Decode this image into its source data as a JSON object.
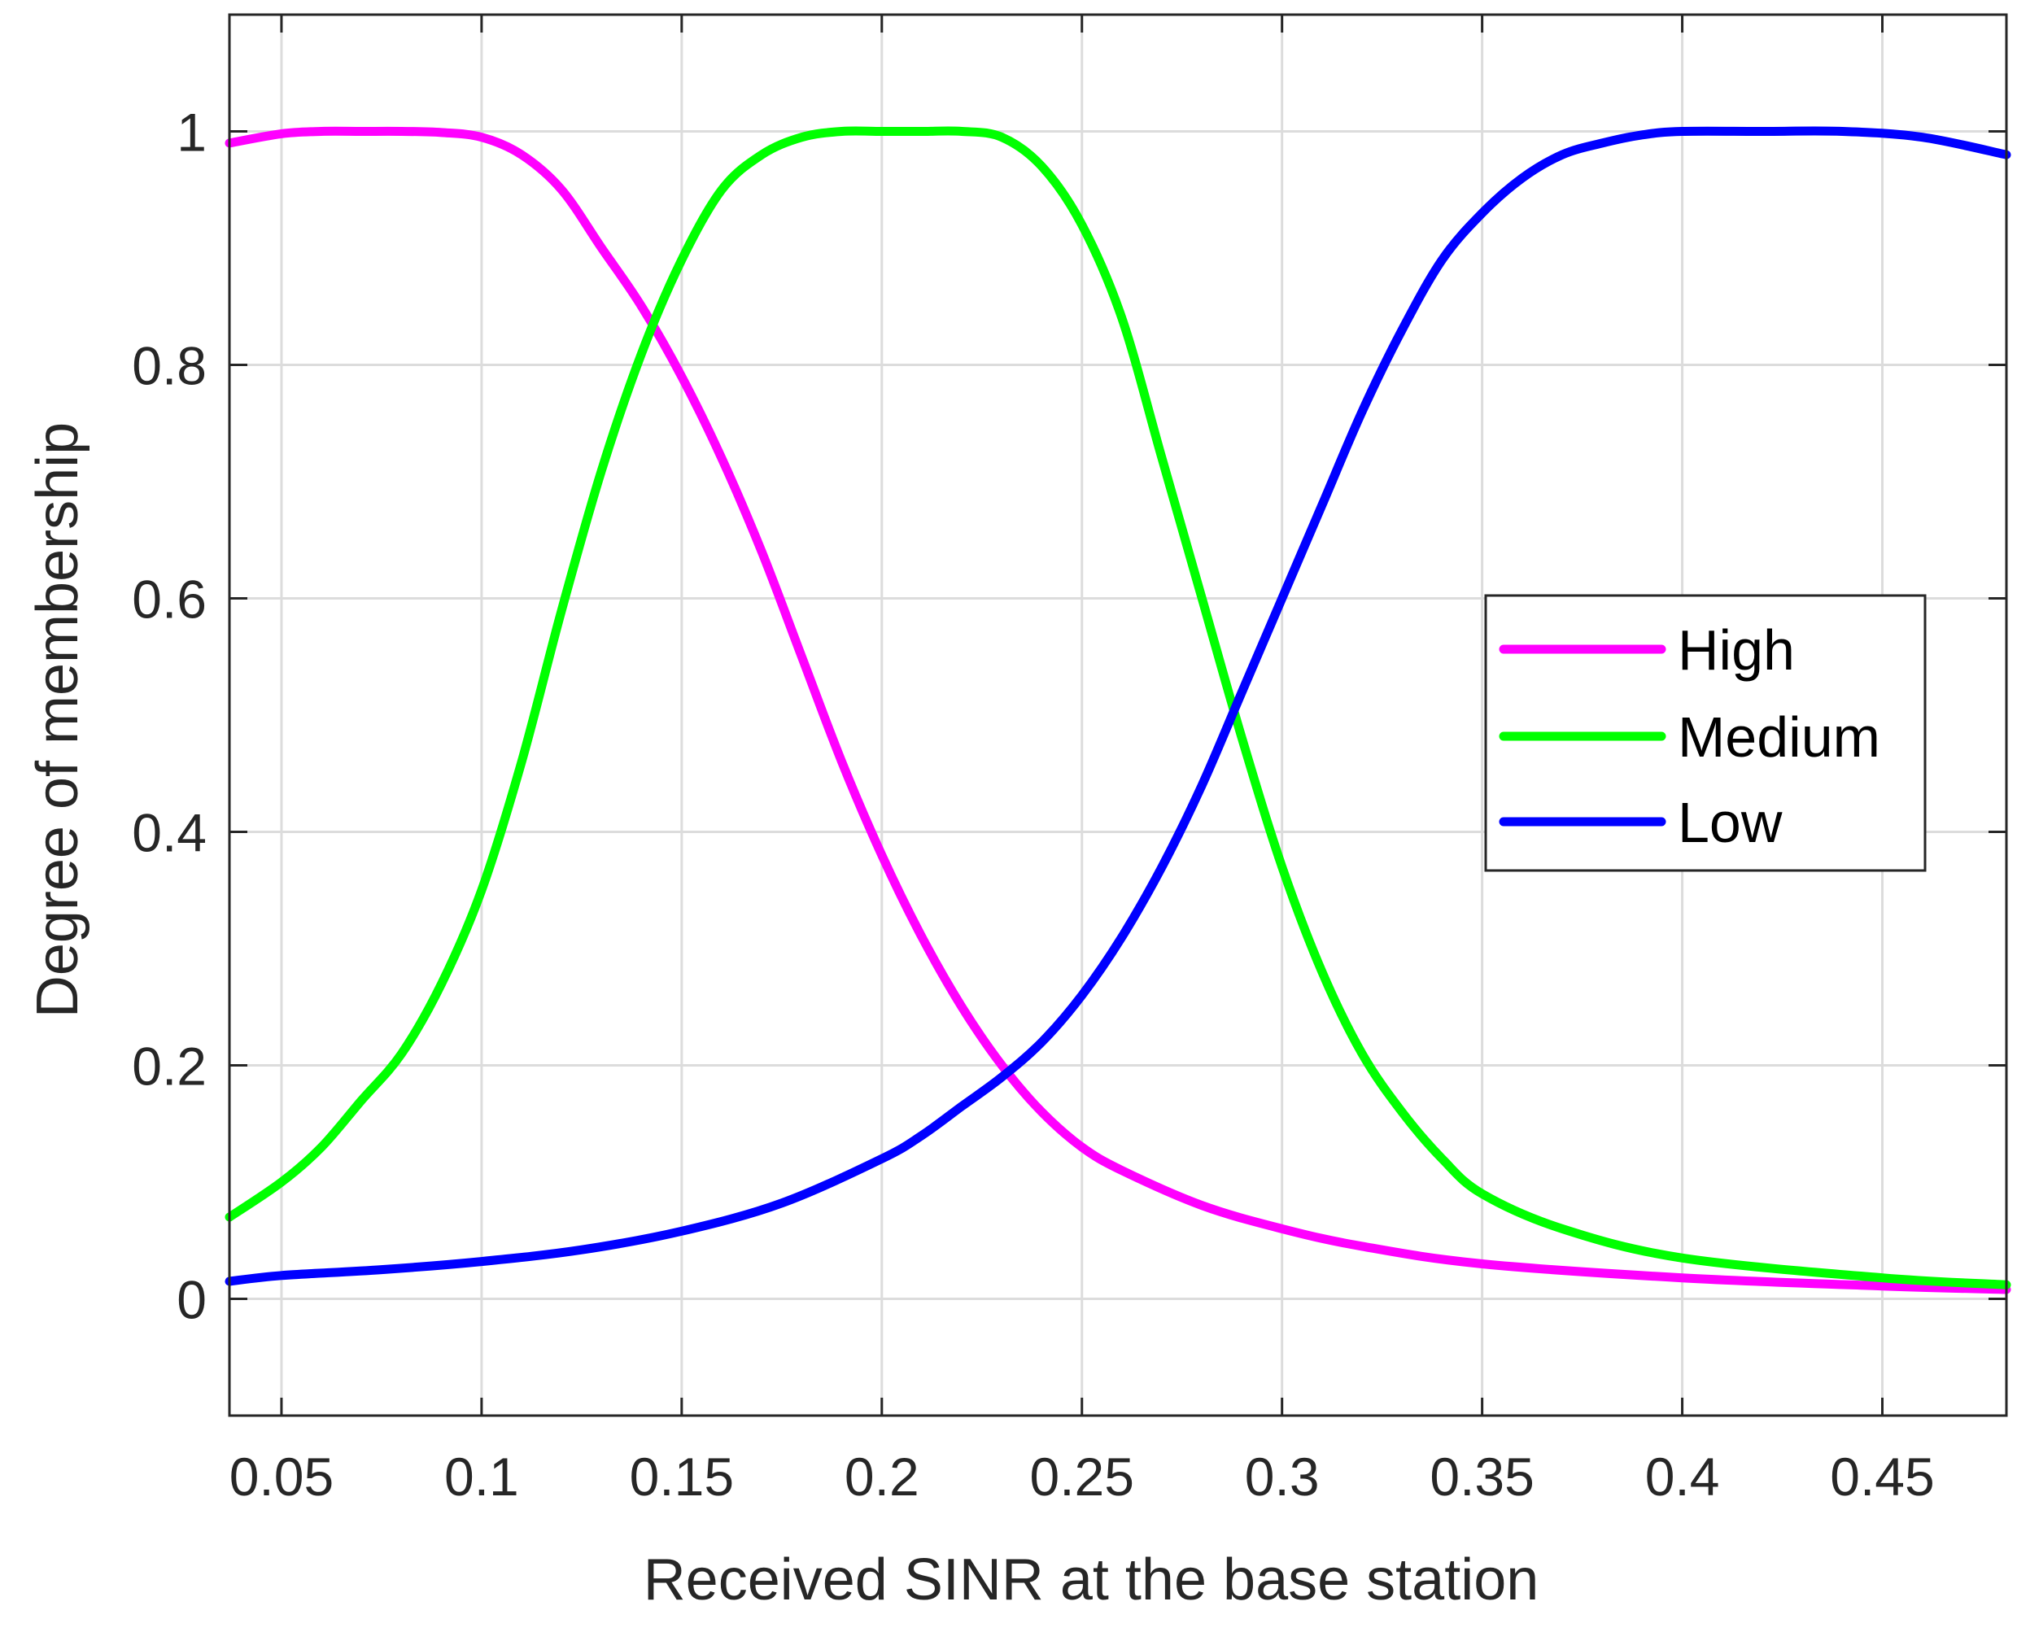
{
  "chart_data": {
    "type": "line",
    "title": "",
    "xlabel": "Received SINR at the base station",
    "ylabel": "Degree of membership",
    "xlim": [
      0.037,
      0.481
    ],
    "ylim": [
      -0.1,
      1.1
    ],
    "xticks": [
      0.05,
      0.1,
      0.15,
      0.2,
      0.25,
      0.3,
      0.35,
      0.4,
      0.45
    ],
    "xtick_labels": [
      "0.05",
      "0.1",
      "0.15",
      "0.2",
      "0.25",
      "0.3",
      "0.35",
      "0.4",
      "0.45"
    ],
    "yticks": [
      0,
      0.2,
      0.4,
      0.6,
      0.8,
      1
    ],
    "ytick_labels": [
      "0",
      "0.2",
      "0.4",
      "0.6",
      "0.8",
      "1"
    ],
    "grid": true,
    "legend_position": "right",
    "series": [
      {
        "name": "High",
        "color": "#ff00ff",
        "x": [
          0.037,
          0.05,
          0.06,
          0.07,
          0.08,
          0.09,
          0.1,
          0.11,
          0.12,
          0.13,
          0.14,
          0.15,
          0.16,
          0.17,
          0.18,
          0.19,
          0.2,
          0.21,
          0.22,
          0.23,
          0.24,
          0.25,
          0.26,
          0.28,
          0.3,
          0.32,
          0.35,
          0.4,
          0.45,
          0.481
        ],
        "y": [
          0.99,
          0.998,
          1.0,
          1.0,
          1.0,
          0.999,
          0.995,
          0.98,
          0.95,
          0.9,
          0.85,
          0.79,
          0.72,
          0.64,
          0.55,
          0.46,
          0.38,
          0.31,
          0.25,
          0.2,
          0.16,
          0.13,
          0.11,
          0.08,
          0.06,
          0.045,
          0.03,
          0.018,
          0.011,
          0.008
        ]
      },
      {
        "name": "Medium",
        "color": "#00ff00",
        "x": [
          0.037,
          0.05,
          0.06,
          0.07,
          0.08,
          0.09,
          0.1,
          0.11,
          0.12,
          0.13,
          0.14,
          0.15,
          0.16,
          0.17,
          0.18,
          0.19,
          0.2,
          0.21,
          0.22,
          0.23,
          0.24,
          0.25,
          0.26,
          0.27,
          0.28,
          0.29,
          0.3,
          0.31,
          0.32,
          0.33,
          0.34,
          0.35,
          0.37,
          0.4,
          0.45,
          0.481
        ],
        "y": [
          0.07,
          0.1,
          0.13,
          0.17,
          0.21,
          0.27,
          0.35,
          0.46,
          0.59,
          0.71,
          0.81,
          0.89,
          0.95,
          0.98,
          0.995,
          1.0,
          1.0,
          1.0,
          1.0,
          0.995,
          0.97,
          0.92,
          0.84,
          0.72,
          0.6,
          0.48,
          0.37,
          0.28,
          0.21,
          0.16,
          0.12,
          0.09,
          0.06,
          0.035,
          0.018,
          0.012
        ]
      },
      {
        "name": "Low",
        "color": "#0000ff",
        "x": [
          0.037,
          0.05,
          0.075,
          0.1,
          0.125,
          0.15,
          0.175,
          0.2,
          0.21,
          0.22,
          0.23,
          0.24,
          0.25,
          0.26,
          0.27,
          0.28,
          0.29,
          0.3,
          0.31,
          0.32,
          0.33,
          0.34,
          0.35,
          0.36,
          0.37,
          0.38,
          0.39,
          0.4,
          0.42,
          0.44,
          0.46,
          0.481
        ],
        "y": [
          0.015,
          0.02,
          0.025,
          0.032,
          0.042,
          0.058,
          0.082,
          0.12,
          0.14,
          0.165,
          0.19,
          0.22,
          0.26,
          0.31,
          0.37,
          0.44,
          0.52,
          0.6,
          0.68,
          0.76,
          0.83,
          0.89,
          0.93,
          0.96,
          0.98,
          0.99,
          0.997,
          1.0,
          1.0,
          1.0,
          0.995,
          0.98
        ]
      }
    ]
  }
}
